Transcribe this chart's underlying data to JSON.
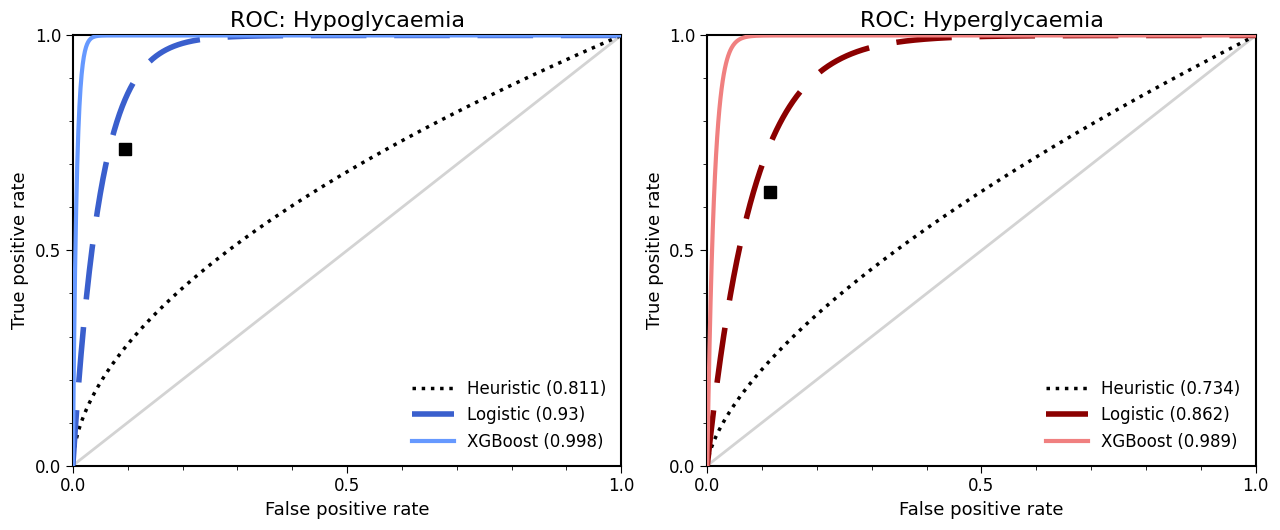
{
  "hypo_title": "ROC: Hypoglycaemia",
  "hyper_title": "ROC: Hyperglycaemia",
  "xlabel": "False positive rate",
  "ylabel": "True positive rate",
  "hypo_heuristic_auc": 0.811,
  "hypo_logistic_auc": 0.93,
  "hypo_xgboost_auc": 0.998,
  "hyper_heuristic_auc": 0.734,
  "hyper_logistic_auc": 0.862,
  "hyper_xgboost_auc": 0.989,
  "hypo_heuristic_point": [
    0.095,
    0.735
  ],
  "hyper_heuristic_point": [
    0.115,
    0.635
  ],
  "color_heuristic": "#000000",
  "color_hypo_logistic": "#3A5FCD",
  "color_hypo_xgboost": "#6699FF",
  "color_hyper_logistic": "#8B0000",
  "color_hyper_xgboost": "#F08080",
  "lw_heuristic": 2.5,
  "lw_logistic": 4.0,
  "lw_xgboost": 3.0,
  "title_fontsize": 16,
  "label_fontsize": 13,
  "legend_fontsize": 12,
  "tick_fontsize": 12
}
